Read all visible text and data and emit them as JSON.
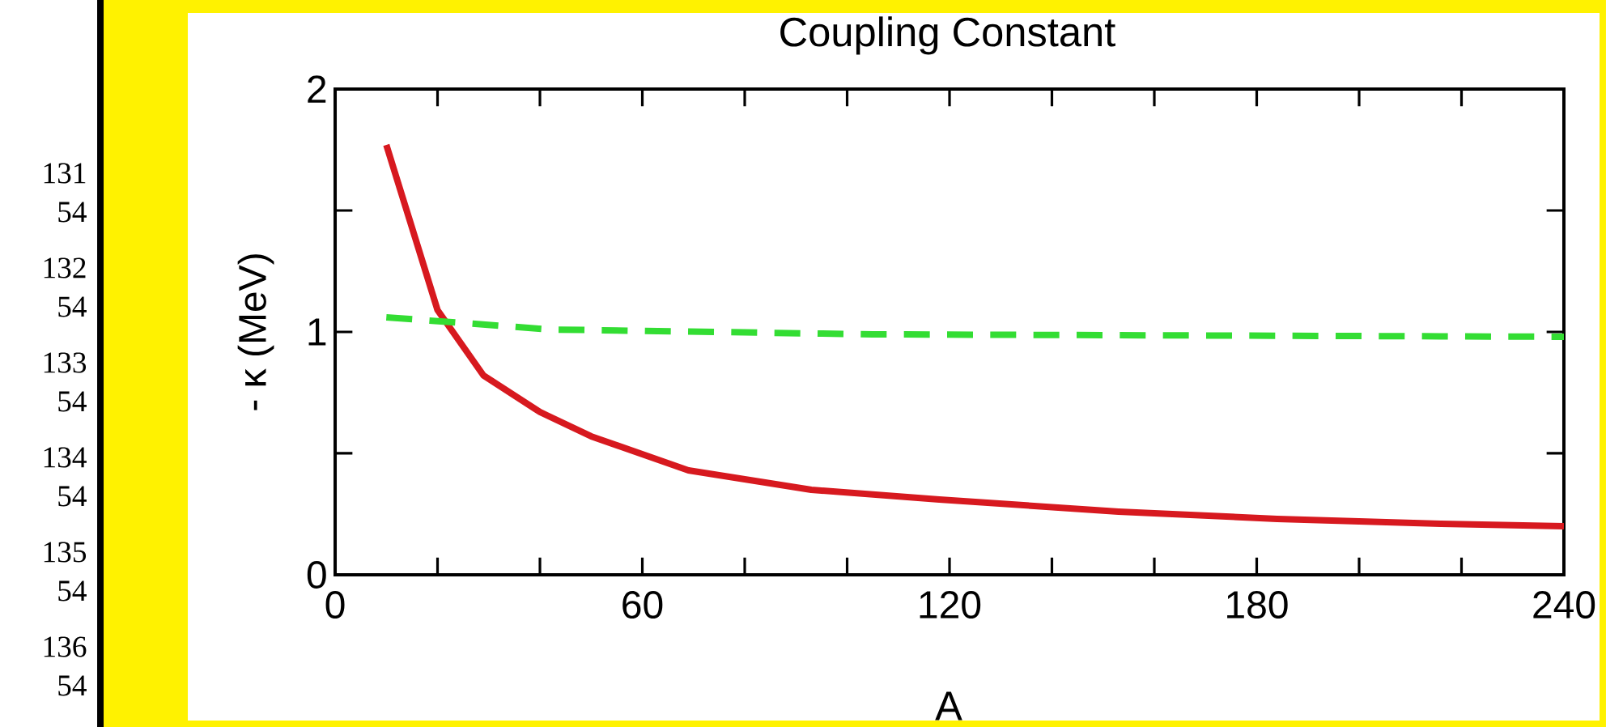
{
  "chart_data": {
    "type": "line",
    "title": "Coupling Constant",
    "xlabel": "A",
    "ylabel": "- κ  (MeV)",
    "annotations": [
      "131",
      "54",
      "132",
      "54",
      "133",
      "54",
      "134",
      "54",
      "135",
      "54",
      "136",
      "54"
    ],
    "series": [
      {
        "color": "#d7191f",
        "line_style": "solid",
        "x": [
          10,
          20,
          29,
          40,
          50,
          69,
          93,
          118,
          153,
          184,
          216,
          240
        ],
        "values": [
          1.77,
          1.09,
          0.82,
          0.67,
          0.57,
          0.43,
          0.35,
          0.31,
          0.26,
          0.23,
          0.21,
          0.2
        ]
      },
      {
        "color": "#33dd33",
        "line_style": "dashed",
        "x": [
          10,
          42,
          105,
          240
        ],
        "values": [
          1.06,
          1.01,
          0.99,
          0.98
        ]
      }
    ],
    "xlim": [
      0,
      240
    ],
    "ylim": [
      0,
      2
    ],
    "xticks": [
      0,
      {
        "value": 20,
        "label": null
      },
      {
        "value": 40,
        "label": null
      },
      60,
      {
        "value": 80,
        "label": null
      },
      {
        "value": 100,
        "label": null
      },
      120,
      {
        "value": 140,
        "label": null
      },
      {
        "value": 160,
        "label": null
      },
      180,
      {
        "value": 200,
        "label": null
      },
      {
        "value": 220,
        "label": null
      },
      240
    ],
    "yticks": [
      0,
      {
        "value": 0.5,
        "label": null
      },
      1,
      {
        "value": 1.5,
        "label": null
      },
      2
    ],
    "grid": false
  }
}
